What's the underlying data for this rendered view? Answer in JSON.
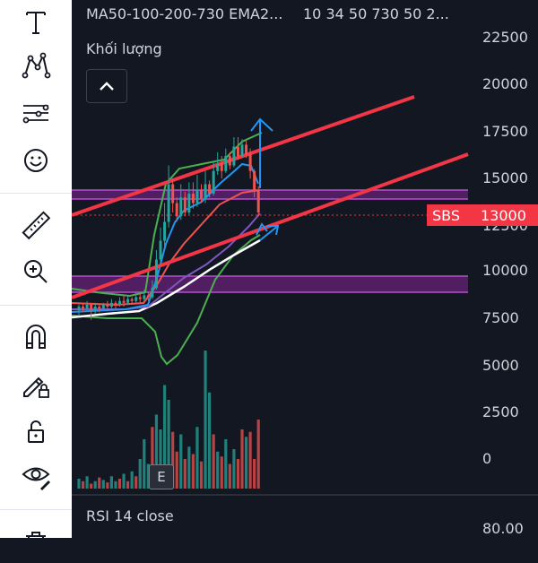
{
  "toolbar": {
    "tools": [
      {
        "name": "text-tool",
        "icon": "text-icon"
      },
      {
        "name": "pattern-tool",
        "icon": "pattern-icon"
      },
      {
        "name": "forecast-tool",
        "icon": "forecast-icon"
      },
      {
        "name": "emoji-tool",
        "icon": "smiley-icon"
      },
      {
        "name": "measure-tool",
        "icon": "ruler-icon"
      },
      {
        "name": "zoom-tool",
        "icon": "zoom-in-icon"
      },
      {
        "name": "magnet-tool",
        "icon": "magnet-icon"
      },
      {
        "name": "lock-drawing-tool",
        "icon": "pencil-lock-icon"
      },
      {
        "name": "lock-all-tool",
        "icon": "unlock-icon"
      },
      {
        "name": "hide-tool",
        "icon": "eye-icon"
      },
      {
        "name": "trash-tool",
        "icon": "trash-icon"
      }
    ]
  },
  "chart": {
    "indicator_name": "MA50-100-200-730 EMA2...",
    "indicator_values": "10 34 50 730 50 2...",
    "volume_label": "Khối lượng",
    "event_badge": "E",
    "rsi_label": "RSI 14 close",
    "rsi_tick": "80.00",
    "price_axis": [
      "22500",
      "20000",
      "17500",
      "15000",
      "12500",
      "10000",
      "7500",
      "5000",
      "2500",
      "0"
    ],
    "last_price": {
      "symbol": "SBS",
      "value": "13000",
      "color": "#f23645"
    }
  },
  "colors": {
    "background": "#131722",
    "up_candle": "#26a69a",
    "down_candle": "#ef5350",
    "trendline": "#f23645",
    "zone": "#9c27b0",
    "arrows": "#2196f3"
  },
  "chart_data": {
    "type": "candlestick",
    "symbol": "SBS",
    "last_price": 13000,
    "y_axis_ticks": [
      22500,
      20000,
      17500,
      15000,
      12500,
      10000,
      7500,
      5000,
      2500,
      0
    ],
    "price_range": [
      0,
      23500
    ],
    "candles": [
      [
        7800,
        8000,
        7500,
        8100
      ],
      [
        8000,
        7900,
        7700,
        8200
      ],
      [
        7900,
        8100,
        7800,
        8300
      ],
      [
        8100,
        7800,
        7300,
        8200
      ],
      [
        7800,
        8000,
        7600,
        8200
      ],
      [
        8000,
        7900,
        7700,
        8100
      ],
      [
        7900,
        8100,
        7800,
        8200
      ],
      [
        8100,
        8000,
        7800,
        8300
      ],
      [
        8000,
        8200,
        7900,
        8400
      ],
      [
        8200,
        8100,
        7900,
        8300
      ],
      [
        8100,
        8300,
        8000,
        8500
      ],
      [
        8300,
        8200,
        8000,
        8600
      ],
      [
        8200,
        8400,
        8100,
        8600
      ],
      [
        8400,
        8300,
        8100,
        8500
      ],
      [
        8300,
        8500,
        8200,
        8800
      ],
      [
        8500,
        8400,
        8200,
        8700
      ],
      [
        8400,
        8600,
        8300,
        8900
      ],
      [
        8600,
        8500,
        8300,
        8800
      ],
      [
        8500,
        9000,
        8400,
        9400
      ],
      [
        9000,
        10500,
        8900,
        11000
      ],
      [
        10500,
        11500,
        10200,
        12200
      ],
      [
        11500,
        12500,
        11200,
        13500
      ],
      [
        12500,
        14500,
        12200,
        15500
      ],
      [
        14500,
        13500,
        13000,
        14800
      ],
      [
        13500,
        12800,
        12500,
        13800
      ],
      [
        12800,
        13800,
        12600,
        14500
      ],
      [
        13800,
        13000,
        12800,
        14100
      ],
      [
        13000,
        14000,
        12900,
        14600
      ],
      [
        14000,
        13500,
        13200,
        14600
      ],
      [
        13500,
        14200,
        13300,
        15000
      ],
      [
        14200,
        13700,
        13500,
        14500
      ],
      [
        13700,
        14500,
        13500,
        15200
      ],
      [
        14500,
        14000,
        13800,
        14700
      ],
      [
        14000,
        15200,
        13900,
        15700
      ],
      [
        15200,
        15600,
        15000,
        16200
      ],
      [
        15600,
        15200,
        14800,
        16000
      ],
      [
        15200,
        16000,
        15100,
        16400
      ],
      [
        16000,
        15500,
        15300,
        16200
      ],
      [
        15500,
        16500,
        15400,
        17000
      ],
      [
        16500,
        16000,
        15800,
        17000
      ],
      [
        16000,
        16600,
        15900,
        16900
      ],
      [
        16600,
        16100,
        15900,
        16800
      ],
      [
        16100,
        15200,
        14800,
        16400
      ],
      [
        15200,
        14200,
        13800,
        15300
      ],
      [
        14200,
        13000,
        12800,
        14400
      ]
    ],
    "volume_bars": [
      {
        "value": 400,
        "up": true
      },
      {
        "value": 300,
        "up": false
      },
      {
        "value": 500,
        "up": true
      },
      {
        "value": 200,
        "up": false
      },
      {
        "value": 300,
        "up": true
      },
      {
        "value": 450,
        "up": false
      },
      {
        "value": 350,
        "up": true
      },
      {
        "value": 250,
        "up": false
      },
      {
        "value": 500,
        "up": true
      },
      {
        "value": 300,
        "up": true
      },
      {
        "value": 400,
        "up": false
      },
      {
        "value": 600,
        "up": true
      },
      {
        "value": 300,
        "up": false
      },
      {
        "value": 700,
        "up": true
      },
      {
        "value": 500,
        "up": false
      },
      {
        "value": 1200,
        "up": true
      },
      {
        "value": 2000,
        "up": true
      },
      {
        "value": 1000,
        "up": true
      },
      {
        "value": 2500,
        "up": false
      },
      {
        "value": 3000,
        "up": true
      },
      {
        "value": 2400,
        "up": true
      },
      {
        "value": 4200,
        "up": true
      },
      {
        "value": 3600,
        "up": true
      },
      {
        "value": 2300,
        "up": false
      },
      {
        "value": 1500,
        "up": false
      },
      {
        "value": 2200,
        "up": true
      },
      {
        "value": 1200,
        "up": false
      },
      {
        "value": 1700,
        "up": true
      },
      {
        "value": 1400,
        "up": false
      },
      {
        "value": 2500,
        "up": true
      },
      {
        "value": 1100,
        "up": false
      },
      {
        "value": 5600,
        "up": true
      },
      {
        "value": 3900,
        "up": true
      },
      {
        "value": 2200,
        "up": false
      },
      {
        "value": 1500,
        "up": true
      },
      {
        "value": 1300,
        "up": false
      },
      {
        "value": 2000,
        "up": true
      },
      {
        "value": 1000,
        "up": false
      },
      {
        "value": 1600,
        "up": true
      },
      {
        "value": 1200,
        "up": false
      },
      {
        "value": 2400,
        "up": false
      },
      {
        "value": 2100,
        "up": true
      },
      {
        "value": 2300,
        "up": false
      },
      {
        "value": 1200,
        "up": false
      },
      {
        "value": 2800,
        "up": false
      }
    ]
  }
}
